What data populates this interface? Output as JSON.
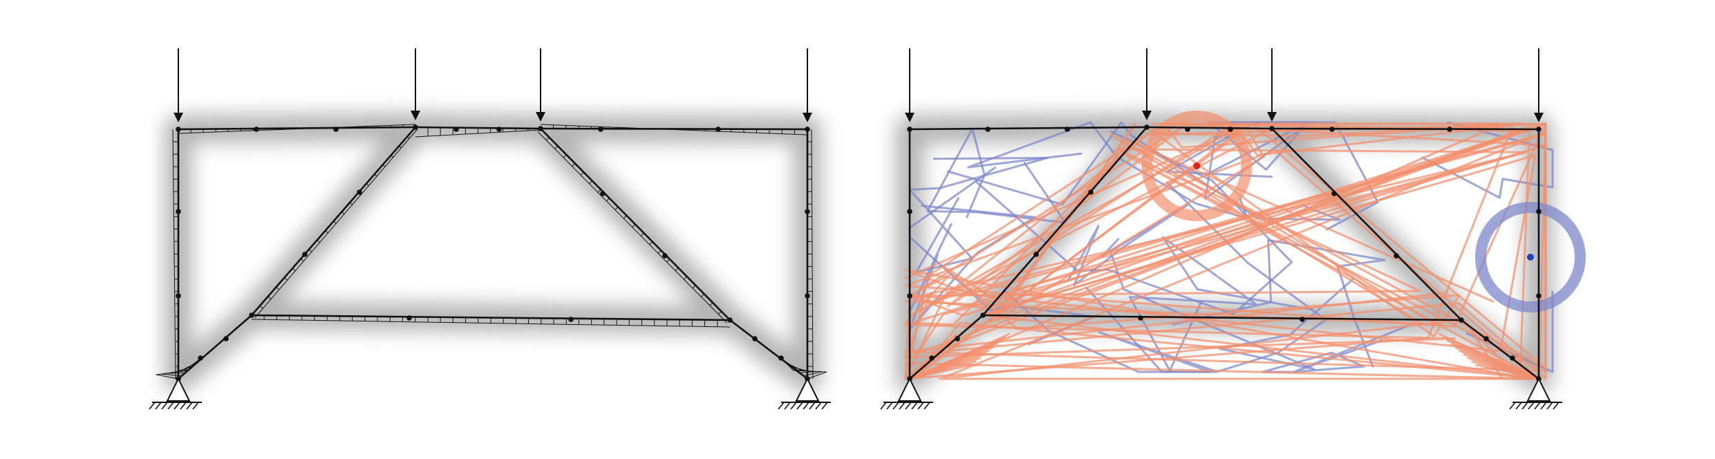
{
  "figure": {
    "panels": [
      {
        "id": "left",
        "show_paths": false,
        "load_node_indices": [
          0,
          3,
          4,
          5
        ],
        "support_node_indices": [
          7,
          8
        ],
        "paths": []
      },
      {
        "id": "right",
        "show_paths": true,
        "load_node_indices": [
          0,
          3,
          4,
          5
        ],
        "support_node_indices": [
          7,
          8
        ],
        "highlight_circles": [
          {
            "name": "red-highlight-circle",
            "color": "#f08060",
            "node": "top-mid"
          },
          {
            "name": "blue-highlight-circle",
            "color": "#7d87c9",
            "node": "right-mid"
          }
        ],
        "path_colors": {
          "red": "#f2906e",
          "blue": "#7d87c9"
        }
      }
    ],
    "colors": {
      "frame": "#111111",
      "shadow": "#9a9a9a",
      "path_red": "#f2906e",
      "path_blue": "#7d87c9",
      "point_red": "#e02020",
      "point_blue": "#2040c0"
    }
  }
}
